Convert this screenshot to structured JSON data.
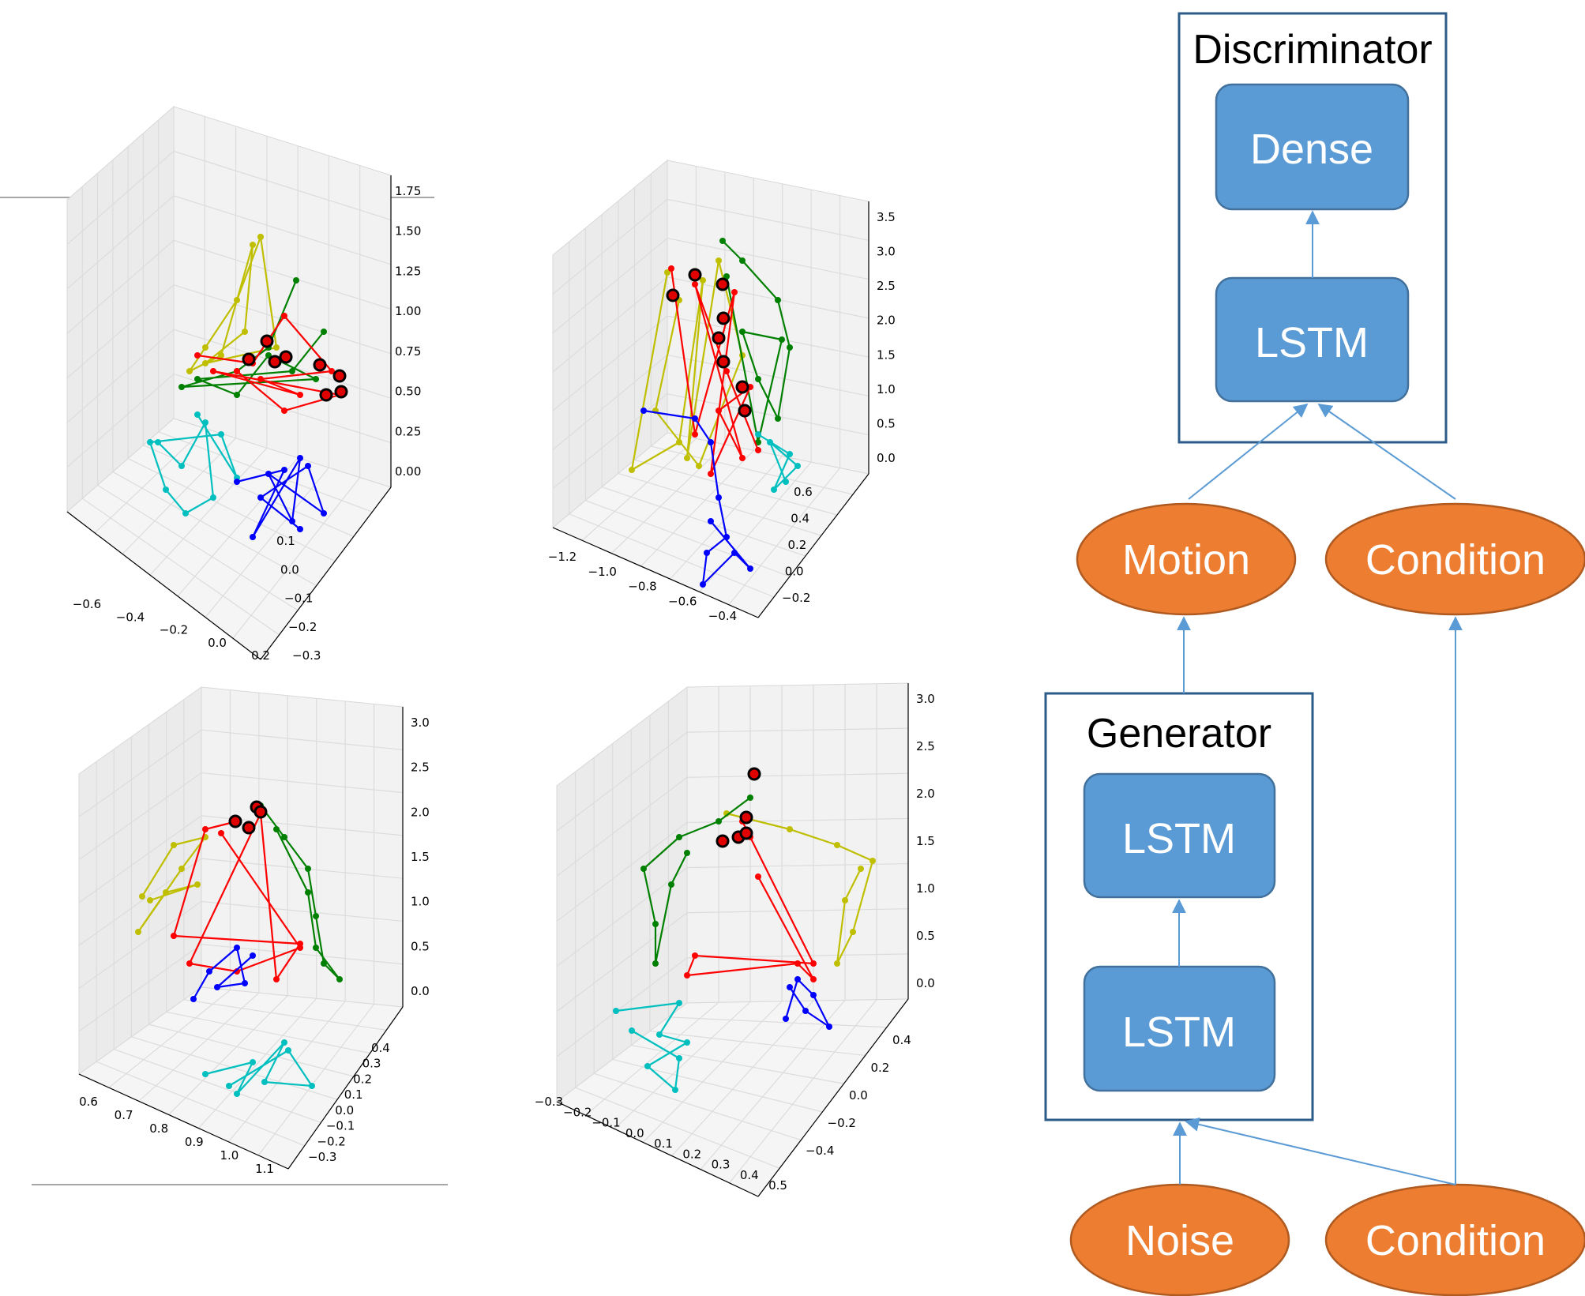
{
  "colors": {
    "lstm_fill": "#5B9BD5",
    "lstm_stroke": "#41719C",
    "ellipse_fill": "#ED7D31",
    "ellipse_stroke": "#AE5A21",
    "arrow": "#5B9BD5",
    "frame": "#2E5C8A",
    "skeleton_yellow": "#BFBF00",
    "skeleton_green": "#008000",
    "skeleton_red": "#FF0000",
    "skeleton_cyan": "#00BFBF",
    "skeleton_blue": "#0000FF",
    "keypoint": "#000000"
  },
  "diagram": {
    "discriminator": {
      "title": "Discriminator",
      "top_block": "Dense",
      "bottom_block": "LSTM"
    },
    "generator": {
      "title": "Generator",
      "top_block": "LSTM",
      "bottom_block": "LSTM"
    },
    "inputs": {
      "motion": "Motion",
      "condition_top": "Condition",
      "noise": "Noise",
      "condition_bottom": "Condition"
    }
  },
  "plots": [
    {
      "z_ticks": [
        "1.75",
        "1.50",
        "1.25",
        "1.00",
        "0.75",
        "0.50",
        "0.25",
        "0.00"
      ],
      "x_ticks": [
        "−0.6",
        "−0.4",
        "−0.2",
        "0.0",
        "0.2"
      ],
      "y_ticks": [
        "0.1",
        "0.0",
        "−0.1",
        "−0.2",
        "−0.3"
      ]
    },
    {
      "z_ticks": [
        "3.5",
        "3.0",
        "2.5",
        "2.0",
        "1.5",
        "1.0",
        "0.5",
        "0.0"
      ],
      "x_ticks": [
        "−1.2",
        "−1.0",
        "−0.8",
        "−0.6",
        "−0.4"
      ],
      "y_ticks": [
        "0.6",
        "0.4",
        "0.2",
        "0.0",
        "−0.2"
      ]
    },
    {
      "z_ticks": [
        "3.0",
        "2.5",
        "2.0",
        "1.5",
        "1.0",
        "0.5",
        "0.0"
      ],
      "x_ticks": [
        "0.6",
        "0.7",
        "0.8",
        "0.9",
        "1.0",
        "1.1"
      ],
      "y_ticks": [
        "0.4",
        "0.3",
        "0.2",
        "0.1",
        "0.0",
        "−0.1",
        "−0.2",
        "−0.3"
      ]
    },
    {
      "z_ticks": [
        "3.0",
        "2.5",
        "2.0",
        "1.5",
        "1.0",
        "0.5",
        "0.0"
      ],
      "x_ticks": [
        "−0.3",
        "−0.2",
        "−0.1",
        "0.0",
        "0.1",
        "0.2",
        "0.3",
        "0.4",
        "0.5"
      ],
      "y_ticks": [
        "0.4",
        "0.2",
        "0.0",
        "−0.2",
        "−0.4"
      ]
    }
  ]
}
